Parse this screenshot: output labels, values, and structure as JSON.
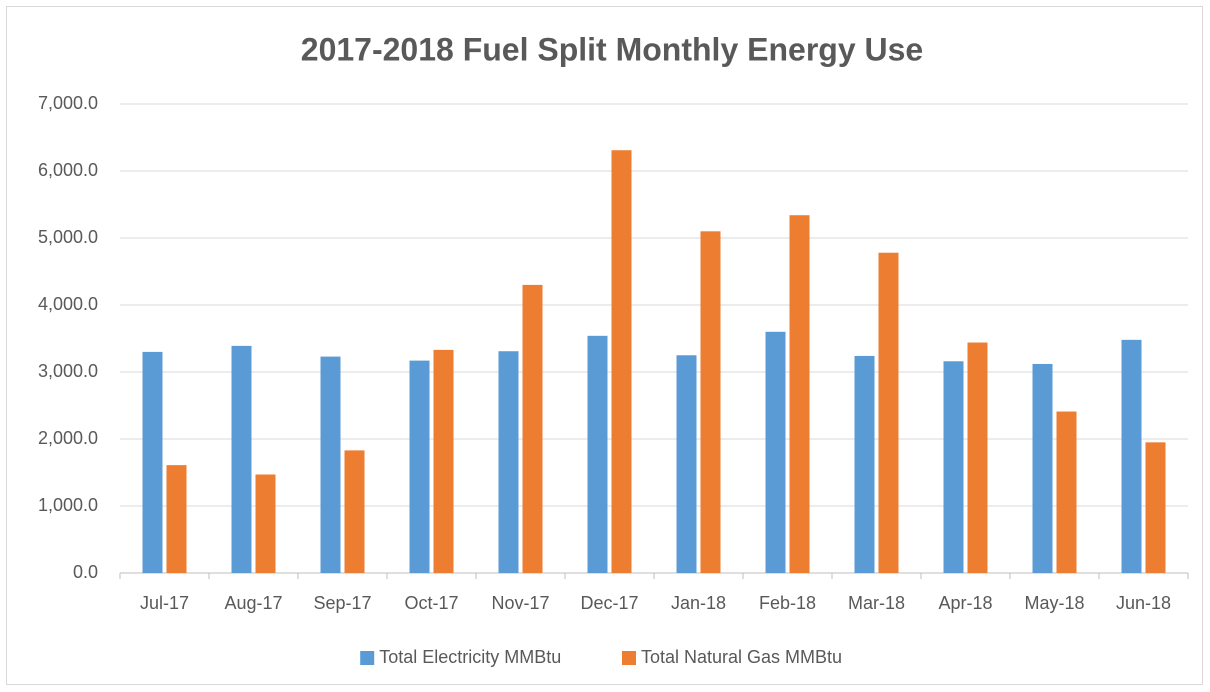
{
  "chart_data": {
    "type": "bar",
    "title": "2017-2018 Fuel Split Monthly Energy Use",
    "categories": [
      "Jul-17",
      "Aug-17",
      "Sep-17",
      "Oct-17",
      "Nov-17",
      "Dec-17",
      "Jan-18",
      "Feb-18",
      "Mar-18",
      "Apr-18",
      "May-18",
      "Jun-18"
    ],
    "series": [
      {
        "name": "Total Electricity MMBtu",
        "color": "#5b9bd5",
        "values": [
          3300,
          3390,
          3230,
          3170,
          3310,
          3540,
          3250,
          3600,
          3240,
          3160,
          3120,
          3480
        ]
      },
      {
        "name": "Total Natural Gas MMBtu",
        "color": "#ed7d31",
        "values": [
          1610,
          1470,
          1830,
          3330,
          4300,
          6310,
          5100,
          5340,
          4780,
          3440,
          2410,
          1950
        ]
      }
    ],
    "ylim": [
      0,
      7000
    ],
    "yticks": [
      {
        "value": 0,
        "label": "0.0"
      },
      {
        "value": 1000,
        "label": "1,000.0"
      },
      {
        "value": 2000,
        "label": "2,000.0"
      },
      {
        "value": 3000,
        "label": "3,000.0"
      },
      {
        "value": 4000,
        "label": "4,000.0"
      },
      {
        "value": 5000,
        "label": "5,000.0"
      },
      {
        "value": 6000,
        "label": "6,000.0"
      },
      {
        "value": 7000,
        "label": "7,000.0"
      }
    ],
    "grid": true,
    "legend": "bottom"
  }
}
